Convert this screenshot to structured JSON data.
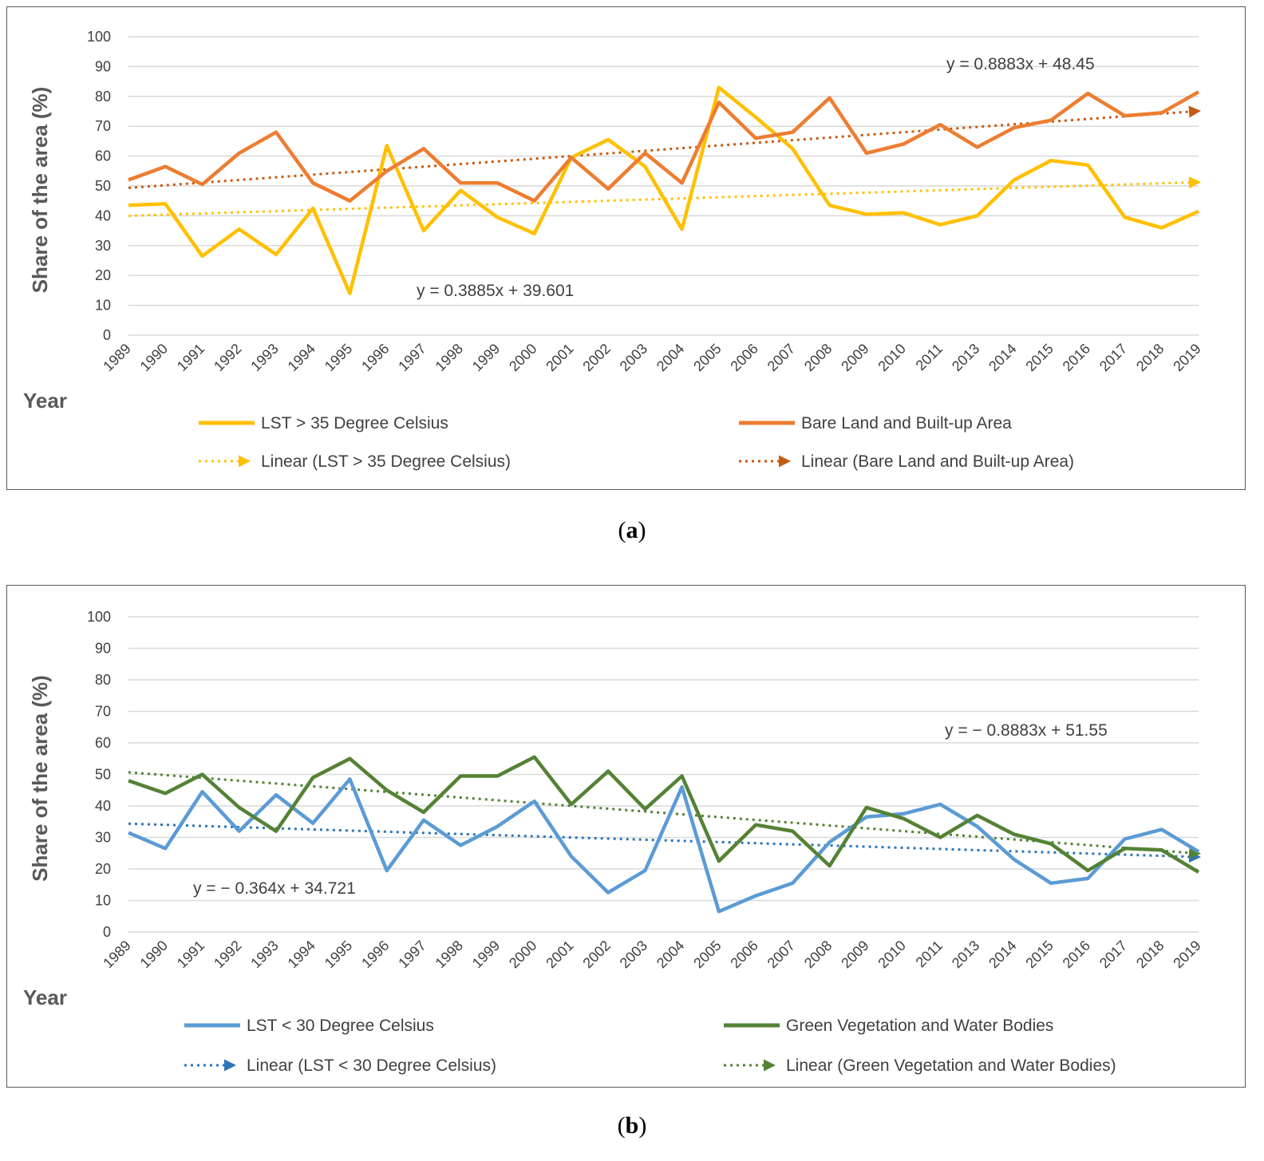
{
  "chart_data": [
    {
      "panel": "a",
      "type": "line",
      "ylabel": "Share of the area (%)",
      "xlabel": "Year",
      "ylim": [
        0,
        100
      ],
      "yticks": [
        0,
        10,
        20,
        30,
        40,
        50,
        60,
        70,
        80,
        90,
        100
      ],
      "categories": [
        "1989",
        "1990",
        "1991",
        "1992",
        "1993",
        "1994",
        "1995",
        "1996",
        "1997",
        "1998",
        "1999",
        "2000",
        "2001",
        "2002",
        "2003",
        "2004",
        "2005",
        "2006",
        "2007",
        "2008",
        "2009",
        "2010",
        "2011",
        "2013",
        "2014",
        "2015",
        "2016",
        "2017",
        "2018",
        "2019"
      ],
      "series": [
        {
          "name": "LST > 35 Degree Celsius",
          "color": "#FFC000",
          "values": [
            43.5,
            44,
            26.5,
            35.5,
            27,
            42.5,
            14,
            63.5,
            35,
            48.5,
            39.5,
            34,
            59.5,
            65.5,
            56.5,
            35.5,
            83,
            73,
            62.5,
            43.5,
            40.5,
            41,
            37,
            40,
            52,
            58.5,
            57,
            39.5,
            36,
            41.5
          ]
        },
        {
          "name": "Bare Land and Built-up Area",
          "color": "#ED7D31",
          "values": [
            52,
            56.5,
            50.5,
            61,
            68,
            51,
            45,
            55,
            62.5,
            51,
            51,
            45,
            59.5,
            49,
            61,
            51,
            78,
            66,
            68,
            79.5,
            61,
            64,
            70.5,
            63,
            69.5,
            72,
            81,
            73.5,
            74.5,
            81.5
          ]
        }
      ],
      "trendlines": [
        {
          "name": "Linear (LST > 35 Degree Celsius)",
          "color": "#FFC000",
          "slope": 0.3885,
          "intercept": 39.601,
          "equation": "y = 0.3885x + 39.601"
        },
        {
          "name": "Linear (Bare Land and Built-up Area)",
          "color": "#C55A11",
          "slope": 0.8883,
          "intercept": 48.45,
          "equation": "y = 0.8883x + 48.45"
        }
      ],
      "legend_position": "bottom",
      "caption": "a"
    },
    {
      "panel": "b",
      "type": "line",
      "ylabel": "Share of the area (%)",
      "xlabel": "Year",
      "ylim": [
        0,
        100
      ],
      "yticks": [
        0,
        10,
        20,
        30,
        40,
        50,
        60,
        70,
        80,
        90,
        100
      ],
      "categories": [
        "1989",
        "1990",
        "1991",
        "1992",
        "1993",
        "1994",
        "1995",
        "1996",
        "1997",
        "1998",
        "1999",
        "2000",
        "2001",
        "2002",
        "2003",
        "2004",
        "2005",
        "2006",
        "2007",
        "2008",
        "2009",
        "2010",
        "2011",
        "2013",
        "2014",
        "2015",
        "2016",
        "2017",
        "2018",
        "2019"
      ],
      "series": [
        {
          "name": "LST < 30 Degree Celsius",
          "color": "#5B9BD5",
          "values": [
            31.5,
            26.5,
            44.5,
            32,
            43.5,
            34.5,
            48.5,
            19.5,
            35.5,
            27.5,
            33.5,
            41.5,
            24,
            12.5,
            19.5,
            46,
            6.5,
            11.5,
            15.5,
            28.5,
            36.5,
            37.5,
            40.5,
            33.5,
            23,
            15.5,
            17,
            29.5,
            32.5,
            25.5
          ]
        },
        {
          "name": "Green Vegetation and Water Bodies",
          "color": "#548235",
          "values": [
            48,
            44,
            50,
            39.5,
            32,
            49,
            55,
            45,
            38,
            49.5,
            49.5,
            55.5,
            40.5,
            51,
            39,
            49.5,
            22.5,
            34,
            32,
            21,
            39.5,
            36,
            30,
            37,
            31,
            28,
            19.5,
            26.5,
            26,
            19
          ]
        }
      ],
      "trendlines": [
        {
          "name": "Linear (LST < 30 Degree Celsius)",
          "color": "#2E75B6",
          "slope": -0.364,
          "intercept": 34.721,
          "equation": "y = − 0.364x + 34.721"
        },
        {
          "name": "Linear (Green Vegetation and Water Bodies)",
          "color": "#548235",
          "slope": -0.8883,
          "intercept": 51.55,
          "equation": "y = − 0.8883x + 51.55"
        }
      ],
      "legend_position": "bottom",
      "caption": "b"
    }
  ]
}
